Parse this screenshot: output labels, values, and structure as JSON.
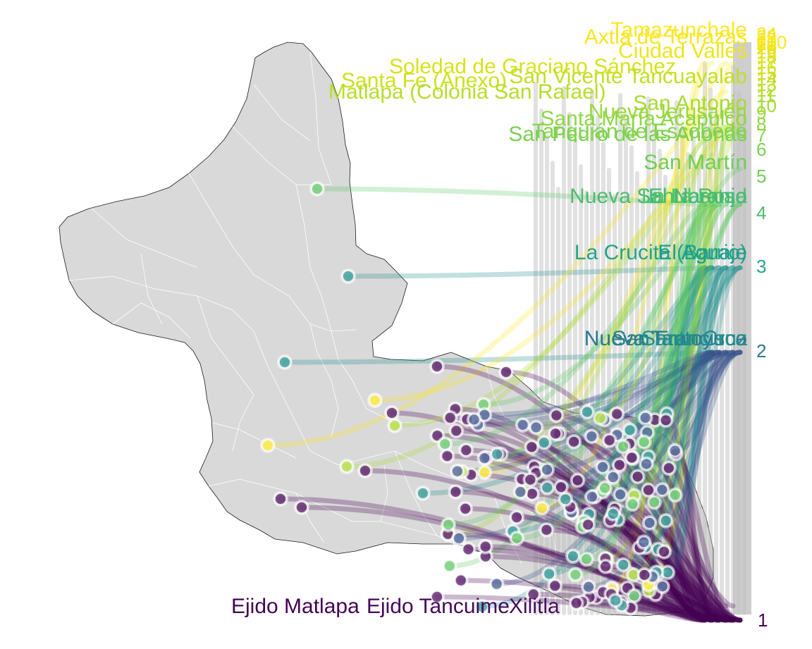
{
  "map": {
    "region_fill": "#d9d9d9",
    "region_stroke": "#ffffff",
    "outline_stroke": "#1a1a1a",
    "bar_color": "#bdbdbd",
    "palette": [
      "#440154",
      "#3b528b",
      "#21908c",
      "#5dc863",
      "#addc30",
      "#fde725"
    ]
  },
  "ranks": [
    {
      "label": "1",
      "color": "#440154"
    },
    {
      "label": "2",
      "color": "#2a788e"
    },
    {
      "label": "3",
      "color": "#26a386"
    },
    {
      "label": "4",
      "color": "#4fba6f"
    },
    {
      "label": "5",
      "color": "#6ece58"
    },
    {
      "label": "6",
      "color": "#7ad151"
    },
    {
      "label": "7",
      "color": "#84d44b"
    },
    {
      "label": "8",
      "color": "#8fd744"
    },
    {
      "label": "9",
      "color": "#9bd93c"
    },
    {
      "label": "10",
      "color": "#a5db36"
    },
    {
      "label": "11",
      "color": "#addc30"
    },
    {
      "label": "12",
      "color": "#b5de2b"
    },
    {
      "label": "13",
      "color": "#bddf26"
    },
    {
      "label": "14",
      "color": "#c5e021"
    },
    {
      "label": "15",
      "color": "#cde11d"
    },
    {
      "label": "16",
      "color": "#d2e21b"
    },
    {
      "label": "17",
      "color": "#d8e219"
    },
    {
      "label": "18",
      "color": "#dde318"
    },
    {
      "label": "19",
      "color": "#e2e418"
    },
    {
      "label": "20",
      "color": "#e7e419"
    },
    {
      "label": "21",
      "color": "#ece51b"
    },
    {
      "label": "22",
      "color": "#f1e51d"
    },
    {
      "label": "23",
      "color": "#f6e620"
    },
    {
      "label": "24",
      "color": "#fae622"
    },
    {
      "label": "200",
      "color": "#fde725"
    }
  ],
  "place_labels": [
    {
      "text": "Tamazunchale",
      "color": "#fde725"
    },
    {
      "text": "Axtla de Terrazas",
      "color": "#f8e621"
    },
    {
      "text": "Ciudad Valles",
      "color": "#eee51c"
    },
    {
      "text": "Soledad de Graciano Sánchez",
      "color": "#d8e219"
    },
    {
      "text": "Santa Fe (Anexo)",
      "color": "#cde11d"
    },
    {
      "text": "San Vicente Tancuayalab",
      "color": "#c2df23"
    },
    {
      "text": "Matlapa (Colonia San Rafael)",
      "color": "#b5de2b"
    },
    {
      "text": "San Antonio",
      "color": "#a8db34"
    },
    {
      "text": "Nueva Jerusalén",
      "color": "#9bd93c"
    },
    {
      "text": "Santa María Acapulco",
      "color": "#8fd744"
    },
    {
      "text": "San Pedro de las Anonas",
      "color": "#7ad151"
    },
    {
      "text": "Tanquián de Escobedo",
      "color": "#84d44b"
    },
    {
      "text": "San Martín",
      "color": "#6ece58"
    },
    {
      "text": "Nueva Santa Rosa",
      "color": "#4fba6f"
    },
    {
      "text": "La Libertad",
      "color": "#52c569"
    },
    {
      "text": "El Naranjo",
      "color": "#3fbc73"
    },
    {
      "text": "La Crucita (Barrio)",
      "color": "#26a386"
    },
    {
      "text": "El Aguaje",
      "color": "#1f9e89"
    },
    {
      "text": "Nueva Tantoyuca",
      "color": "#2a788e"
    },
    {
      "text": "San Francisco",
      "color": "#25838e"
    },
    {
      "text": "Santa Cruz",
      "color": "#21918c"
    },
    {
      "text": "Ejido Matlapa",
      "color": "#440154"
    },
    {
      "text": "Ejido Tancuime",
      "color": "#46085c"
    },
    {
      "text": "Xilitla",
      "color": "#470d60"
    }
  ]
}
